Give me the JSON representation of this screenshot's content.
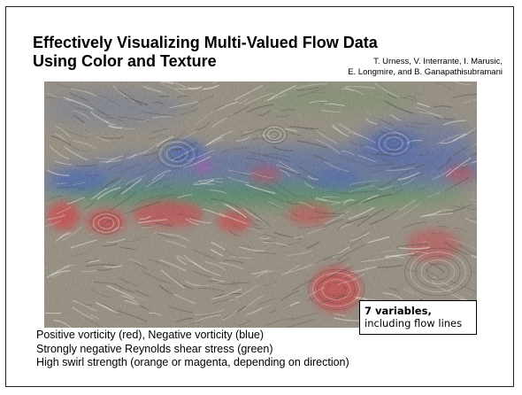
{
  "slide": {
    "title_line1": "Effectively Visualizing Multi-Valued Flow Data",
    "title_line2": "Using Color and Texture",
    "authors_line1": "T. Urness, V. Interrante, I. Marusic,",
    "authors_line2": "E. Longmire, and B. Ganapathisubramani",
    "callout_strong": "7 variables,",
    "callout_sub": "including flow lines",
    "captions": [
      "Positive vorticity (red), Negative vorticity (blue)",
      "Strongly negative Reynolds shear stress (green)",
      "High swirl strength (orange or magenta, depending on direction)"
    ],
    "figure_colors": {
      "background": "#8c8578",
      "positive_vorticity": "#c4383d",
      "negative_vorticity": "#3d5aa8",
      "shear_stress": "#3f8c3c",
      "swirl_magenta": "#b040a0"
    }
  }
}
